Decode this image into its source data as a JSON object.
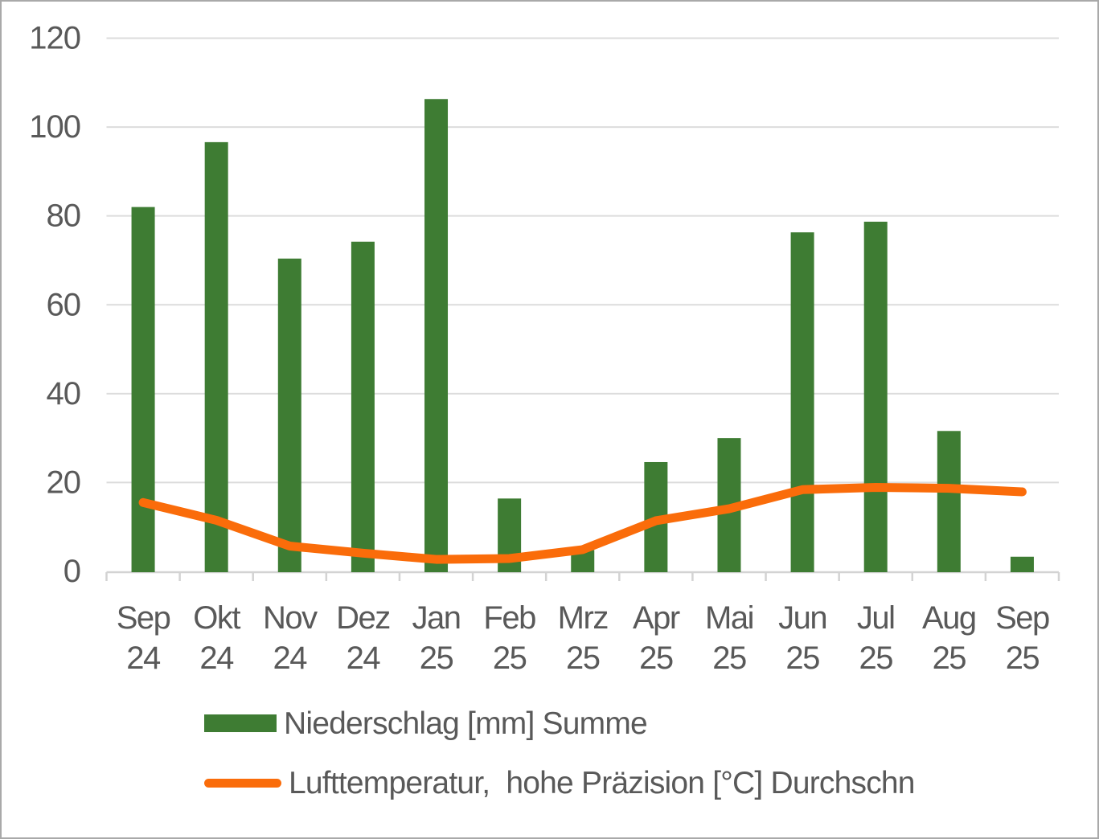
{
  "chart_data": {
    "type": "combo",
    "categories": [
      "Sep 24",
      "Okt 24",
      "Nov 24",
      "Dez 24",
      "Jan 25",
      "Feb 25",
      "Mrz 25",
      "Apr 25",
      "Mai 25",
      "Jun 25",
      "Jul 25",
      "Aug 25",
      "Sep 25"
    ],
    "category_month": [
      "Sep",
      "Okt",
      "Nov",
      "Dez",
      "Jan",
      "Feb",
      "Mrz",
      "Apr",
      "Mai",
      "Jun",
      "Jul",
      "Aug",
      "Sep"
    ],
    "category_year": [
      "24",
      "24",
      "24",
      "24",
      "25",
      "25",
      "25",
      "25",
      "25",
      "25",
      "25",
      "25",
      "25"
    ],
    "series": [
      {
        "name": "Niederschlag [mm] Summe",
        "type": "bar",
        "color": "#3E7C33",
        "values": [
          82,
          96.6,
          70.4,
          74.2,
          106.3,
          16.4,
          4.8,
          24.6,
          30,
          76.3,
          78.7,
          31.6,
          3.3
        ]
      },
      {
        "name": "Lufttemperatur,  hohe Präzision [°C] Durchschn",
        "type": "line",
        "color": "#FA6C0A",
        "values": [
          15.5,
          11.5,
          5.7,
          4.1,
          2.7,
          2.9,
          4.9,
          11.4,
          14.1,
          18.4,
          18.9,
          18.7,
          17.9
        ]
      }
    ],
    "title": "",
    "xlabel": "",
    "ylabel": "",
    "ylim": [
      0,
      120
    ],
    "yticks": [
      0,
      20,
      40,
      60,
      80,
      100,
      120
    ],
    "grid": true,
    "legend_position": "bottom-left"
  },
  "style": {
    "text_color": "#595959",
    "gridline_color": "#DCDCDC",
    "axis_color": "#D3D3D3",
    "background": "#FFFFFF",
    "border_color": "#A9A9A9"
  }
}
